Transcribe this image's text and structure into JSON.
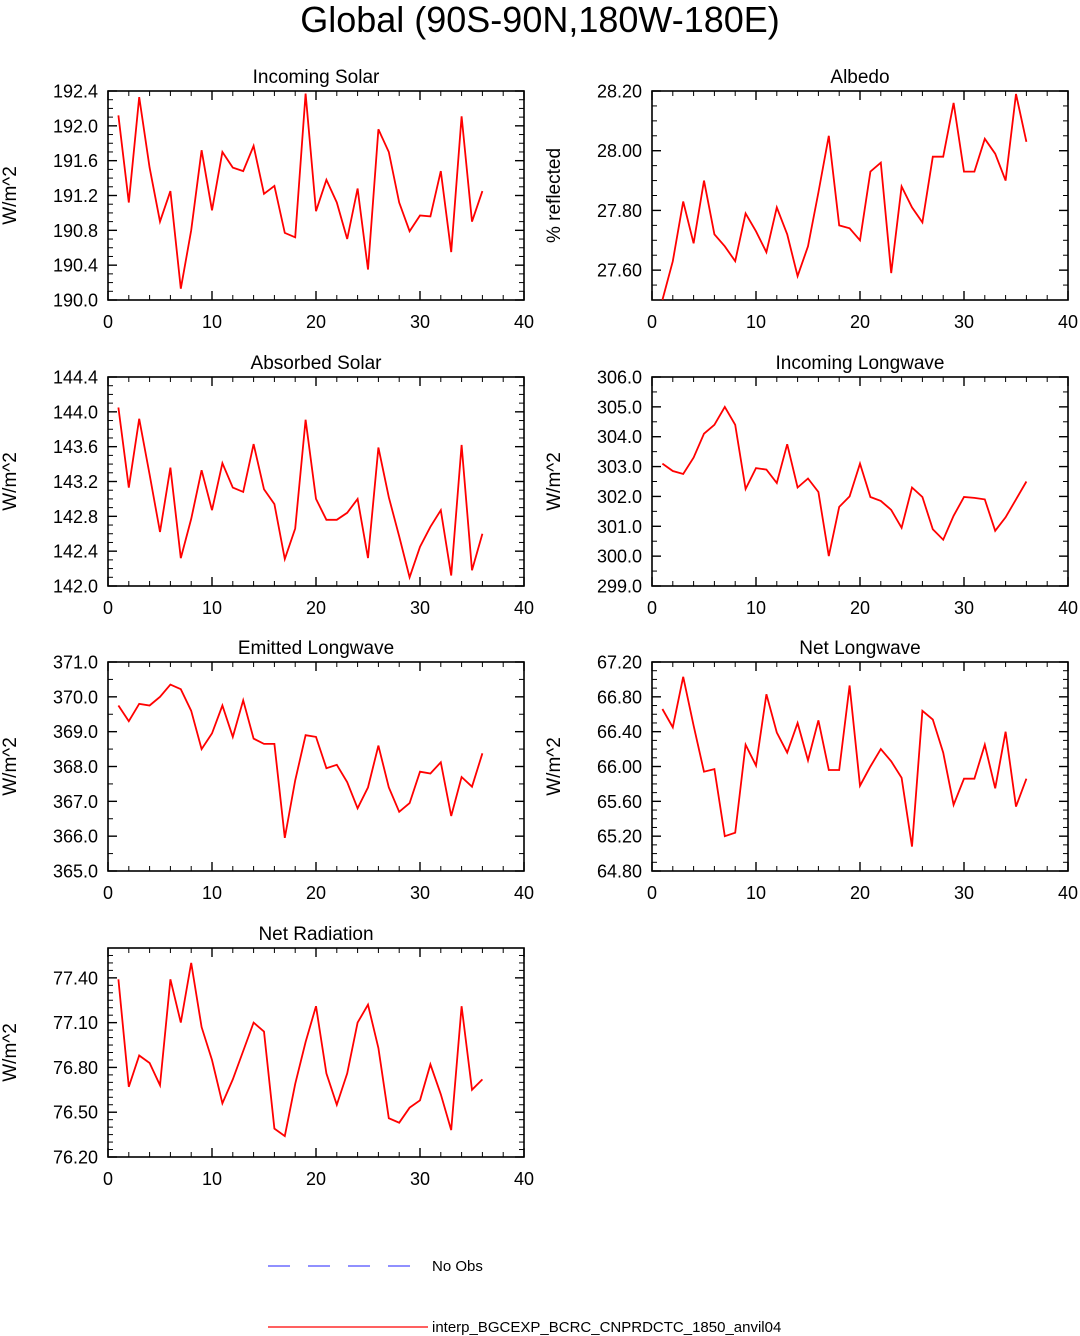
{
  "page": {
    "title": "Global (90S-90N,180W-180E)"
  },
  "colors": {
    "model_line": "#ff0000",
    "obs_line": "#6b6bff",
    "axis": "#000000"
  },
  "legend": {
    "obs_label": "No Obs",
    "model_label": "interp_BGCEXP_BCRC_CNPRDCTC_1850_anvil04"
  },
  "chart_data": [
    {
      "id": "incoming-solar",
      "type": "line",
      "title": "Incoming Solar",
      "ylabel": "W/m^2",
      "xlim": [
        0,
        40
      ],
      "ylim": [
        190.0,
        192.4
      ],
      "xticks": [
        0,
        10,
        20,
        30,
        40
      ],
      "yticks": [
        190.0,
        190.4,
        190.8,
        191.2,
        191.6,
        192.0,
        192.4
      ],
      "yminor": 0.1,
      "ydecimals": 1,
      "x": [
        1,
        2,
        3,
        4,
        5,
        6,
        7,
        8,
        9,
        10,
        11,
        12,
        13,
        14,
        15,
        16,
        17,
        18,
        19,
        20,
        21,
        22,
        23,
        24,
        25,
        26,
        27,
        28,
        29,
        30,
        31,
        32,
        33,
        34,
        35,
        36
      ],
      "values": [
        192.12,
        191.12,
        192.33,
        191.52,
        190.9,
        191.25,
        190.13,
        190.8,
        191.72,
        191.03,
        191.7,
        191.52,
        191.48,
        191.77,
        191.22,
        191.31,
        190.77,
        190.72,
        192.37,
        191.02,
        191.38,
        191.12,
        190.7,
        191.28,
        190.35,
        191.96,
        191.7,
        191.12,
        190.79,
        190.97,
        190.96,
        191.48,
        190.55,
        192.11,
        190.9,
        191.25
      ]
    },
    {
      "id": "albedo",
      "type": "line",
      "title": "Albedo",
      "ylabel": "% reflected",
      "xlim": [
        0,
        40
      ],
      "ylim": [
        27.5,
        28.2
      ],
      "xticks": [
        0,
        10,
        20,
        30,
        40
      ],
      "yticks": [
        27.6,
        27.8,
        28.0,
        28.2
      ],
      "yminor": 0.05,
      "ydecimals": 2,
      "x": [
        1,
        2,
        3,
        4,
        5,
        6,
        7,
        8,
        9,
        10,
        11,
        12,
        13,
        14,
        15,
        16,
        17,
        18,
        19,
        20,
        21,
        22,
        23,
        24,
        25,
        26,
        27,
        28,
        29,
        30,
        31,
        32,
        33,
        34,
        35,
        36
      ],
      "values": [
        27.5,
        27.63,
        27.83,
        27.69,
        27.9,
        27.72,
        27.68,
        27.63,
        27.79,
        27.73,
        27.66,
        27.81,
        27.72,
        27.58,
        27.68,
        27.86,
        28.05,
        27.75,
        27.74,
        27.7,
        27.93,
        27.96,
        27.59,
        27.88,
        27.81,
        27.76,
        27.98,
        27.98,
        28.16,
        27.93,
        27.93,
        28.04,
        27.99,
        27.9,
        28.19,
        28.03
      ]
    },
    {
      "id": "absorbed-solar",
      "type": "line",
      "title": "Absorbed Solar",
      "ylabel": "W/m^2",
      "xlim": [
        0,
        40
      ],
      "ylim": [
        142.0,
        144.4
      ],
      "xticks": [
        0,
        10,
        20,
        30,
        40
      ],
      "yticks": [
        142.0,
        142.4,
        142.8,
        143.2,
        143.6,
        144.0,
        144.4
      ],
      "yminor": 0.1,
      "ydecimals": 1,
      "x": [
        1,
        2,
        3,
        4,
        5,
        6,
        7,
        8,
        9,
        10,
        11,
        12,
        13,
        14,
        15,
        16,
        17,
        18,
        19,
        20,
        21,
        22,
        23,
        24,
        25,
        26,
        27,
        28,
        29,
        30,
        31,
        32,
        33,
        34,
        35,
        36
      ],
      "values": [
        144.05,
        143.13,
        143.92,
        143.28,
        142.62,
        143.36,
        142.32,
        142.77,
        143.33,
        142.87,
        143.41,
        143.13,
        143.08,
        143.63,
        143.11,
        142.94,
        142.31,
        142.66,
        143.91,
        143.0,
        142.76,
        142.76,
        142.84,
        143.0,
        142.32,
        143.59,
        143.02,
        142.57,
        142.1,
        142.45,
        142.68,
        142.87,
        142.12,
        143.62,
        142.18,
        142.6
      ]
    },
    {
      "id": "incoming-longwave",
      "type": "line",
      "title": "Incoming Longwave",
      "ylabel": "W/m^2",
      "xlim": [
        0,
        40
      ],
      "ylim": [
        299.0,
        306.0
      ],
      "xticks": [
        0,
        10,
        20,
        30,
        40
      ],
      "yticks": [
        299.0,
        300.0,
        301.0,
        302.0,
        303.0,
        304.0,
        305.0,
        306.0
      ],
      "yminor": 0.5,
      "ydecimals": 1,
      "x": [
        1,
        2,
        3,
        4,
        5,
        6,
        7,
        8,
        9,
        10,
        11,
        12,
        13,
        14,
        15,
        16,
        17,
        18,
        19,
        20,
        21,
        22,
        23,
        24,
        25,
        26,
        27,
        28,
        29,
        30,
        31,
        32,
        33,
        34,
        35,
        36
      ],
      "values": [
        303.1,
        302.85,
        302.75,
        303.3,
        304.1,
        304.4,
        305.0,
        304.4,
        302.25,
        302.95,
        302.9,
        302.45,
        303.75,
        302.3,
        302.6,
        302.15,
        300.0,
        301.65,
        302.0,
        303.1,
        301.98,
        301.85,
        301.55,
        300.95,
        302.3,
        301.98,
        300.9,
        300.55,
        301.35,
        301.98,
        301.95,
        301.9,
        300.85,
        301.3,
        301.9,
        302.5
      ]
    },
    {
      "id": "emitted-longwave",
      "type": "line",
      "title": "Emitted Longwave",
      "ylabel": "W/m^2",
      "xlim": [
        0,
        40
      ],
      "ylim": [
        365.0,
        371.0
      ],
      "xticks": [
        0,
        10,
        20,
        30,
        40
      ],
      "yticks": [
        365.0,
        366.0,
        367.0,
        368.0,
        369.0,
        370.0,
        371.0
      ],
      "yminor": 0.5,
      "ydecimals": 1,
      "x": [
        1,
        2,
        3,
        4,
        5,
        6,
        7,
        8,
        9,
        10,
        11,
        12,
        13,
        14,
        15,
        16,
        17,
        18,
        19,
        20,
        21,
        22,
        23,
        24,
        25,
        26,
        27,
        28,
        29,
        30,
        31,
        32,
        33,
        34,
        35,
        36
      ],
      "values": [
        369.75,
        369.3,
        369.8,
        369.75,
        370.0,
        370.35,
        370.22,
        369.6,
        368.5,
        368.95,
        369.75,
        368.85,
        369.9,
        368.8,
        368.65,
        368.65,
        365.95,
        367.6,
        368.9,
        368.85,
        367.95,
        368.05,
        367.55,
        366.8,
        367.4,
        368.6,
        367.4,
        366.7,
        366.95,
        367.85,
        367.8,
        368.12,
        366.58,
        367.7,
        367.42,
        368.38
      ]
    },
    {
      "id": "net-longwave",
      "type": "line",
      "title": "Net Longwave",
      "ylabel": "W/m^2",
      "xlim": [
        0,
        40
      ],
      "ylim": [
        64.8,
        67.2
      ],
      "xticks": [
        0,
        10,
        20,
        30,
        40
      ],
      "yticks": [
        64.8,
        65.2,
        65.6,
        66.0,
        66.4,
        66.8,
        67.2
      ],
      "yminor": 0.1,
      "ydecimals": 2,
      "x": [
        1,
        2,
        3,
        4,
        5,
        6,
        7,
        8,
        9,
        10,
        11,
        12,
        13,
        14,
        15,
        16,
        17,
        18,
        19,
        20,
        21,
        22,
        23,
        24,
        25,
        26,
        27,
        28,
        29,
        30,
        31,
        32,
        33,
        34,
        35,
        36
      ],
      "values": [
        66.66,
        66.45,
        67.03,
        66.47,
        65.94,
        65.97,
        65.2,
        65.24,
        66.25,
        66.01,
        66.83,
        66.39,
        66.16,
        66.5,
        66.07,
        66.53,
        65.96,
        65.96,
        66.93,
        65.78,
        66.0,
        66.2,
        66.06,
        65.87,
        65.08,
        66.64,
        66.54,
        66.16,
        65.56,
        65.86,
        65.86,
        66.25,
        65.75,
        66.4,
        65.54,
        65.86
      ]
    },
    {
      "id": "net-radiation",
      "type": "line",
      "title": "Net Radiation",
      "ylabel": "W/m^2",
      "xlim": [
        0,
        40
      ],
      "ylim": [
        76.2,
        77.6
      ],
      "xticks": [
        0,
        10,
        20,
        30,
        40
      ],
      "yticks": [
        76.2,
        76.5,
        76.8,
        77.1,
        77.4
      ],
      "yminor": 0.05,
      "ydecimals": 2,
      "x": [
        1,
        2,
        3,
        4,
        5,
        6,
        7,
        8,
        9,
        10,
        11,
        12,
        13,
        14,
        15,
        16,
        17,
        18,
        19,
        20,
        21,
        22,
        23,
        24,
        25,
        26,
        27,
        28,
        29,
        30,
        31,
        32,
        33,
        34,
        35,
        36
      ],
      "values": [
        77.39,
        76.67,
        76.88,
        76.83,
        76.68,
        77.39,
        77.1,
        77.5,
        77.07,
        76.85,
        76.56,
        76.72,
        76.91,
        77.1,
        77.04,
        76.39,
        76.34,
        76.69,
        76.97,
        77.21,
        76.76,
        76.55,
        76.76,
        77.1,
        77.22,
        76.93,
        76.46,
        76.43,
        76.53,
        76.58,
        76.82,
        76.62,
        76.38,
        77.21,
        76.65,
        76.72
      ]
    }
  ]
}
